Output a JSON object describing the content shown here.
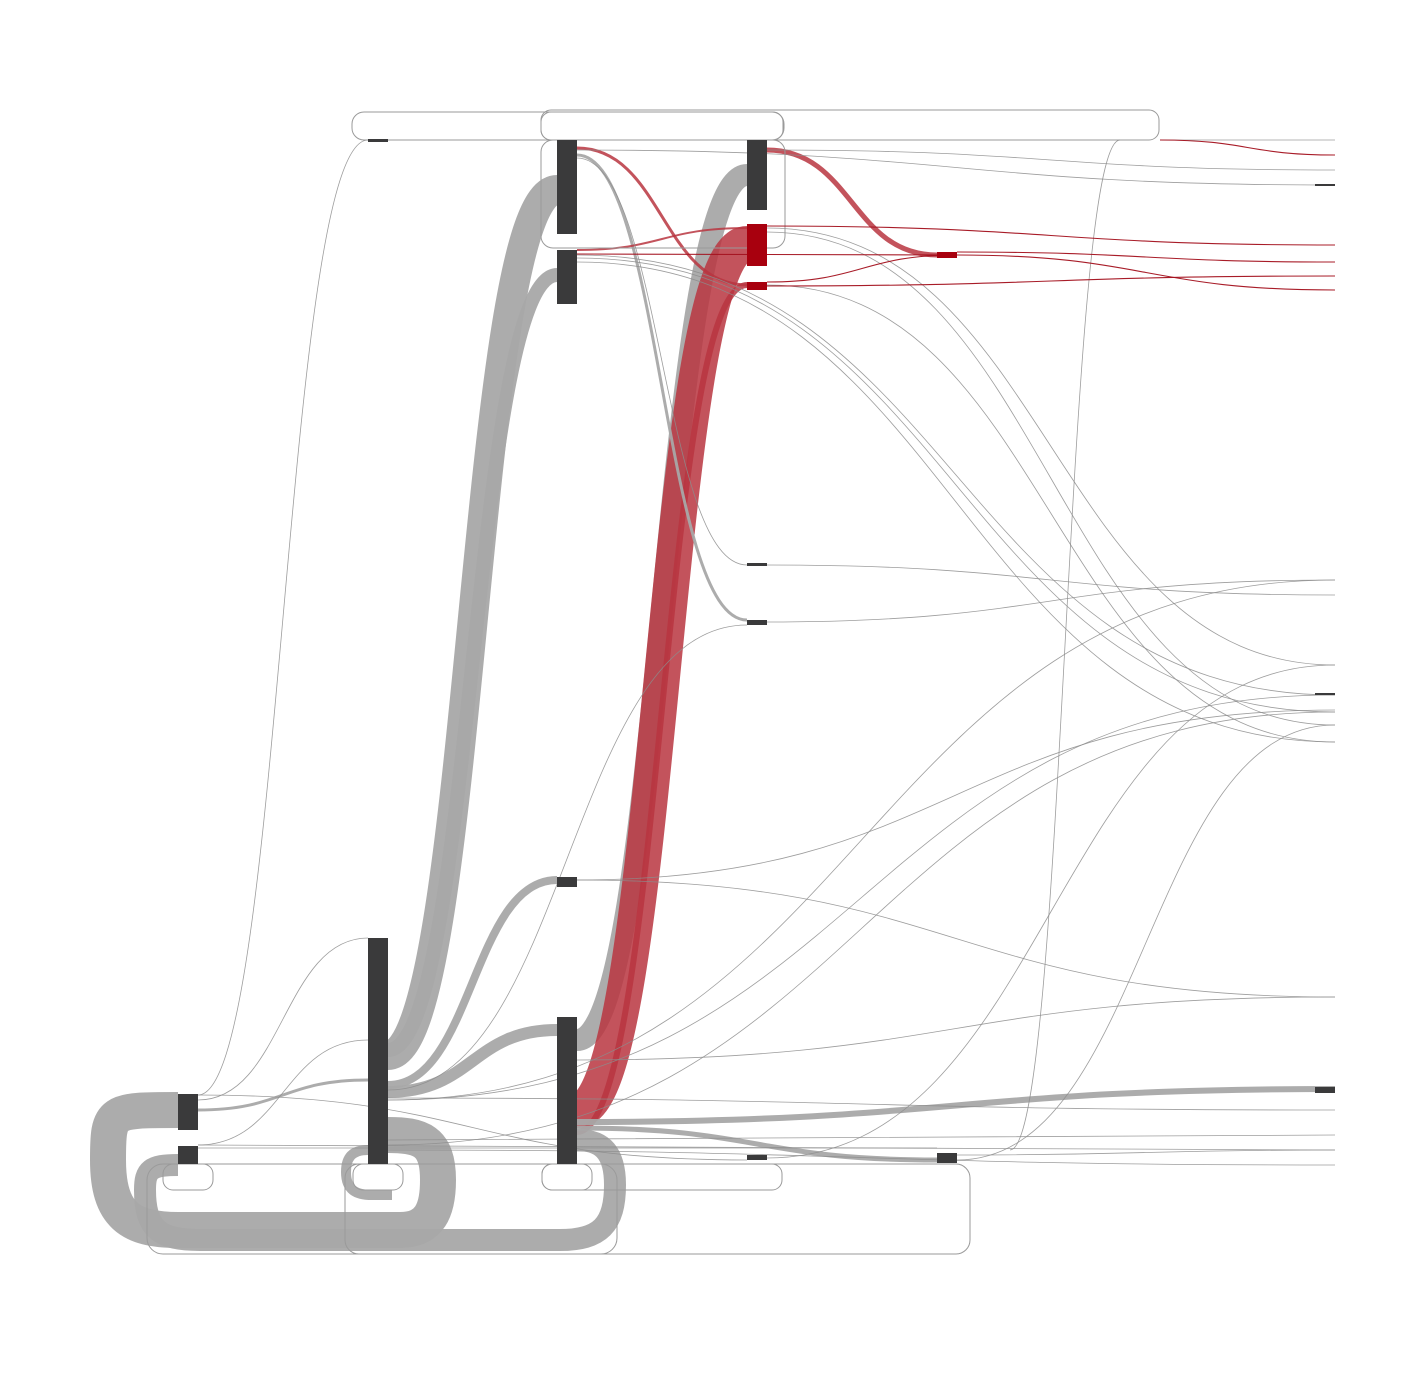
{
  "diagram": {
    "type": "sankey",
    "title": "",
    "colors": {
      "background": "#ffffff",
      "node": "#3a3a3b",
      "node_highlight": "#a8000e",
      "flow": "#a8a8a8",
      "flow_highlight": "#b93540",
      "thin_link": "#8c8c8c",
      "thin_link_highlight": "#a3101c",
      "loop_outline": "#9a9a9a"
    },
    "layers": 6,
    "highlight_description": "",
    "nodes": [],
    "links": []
  }
}
